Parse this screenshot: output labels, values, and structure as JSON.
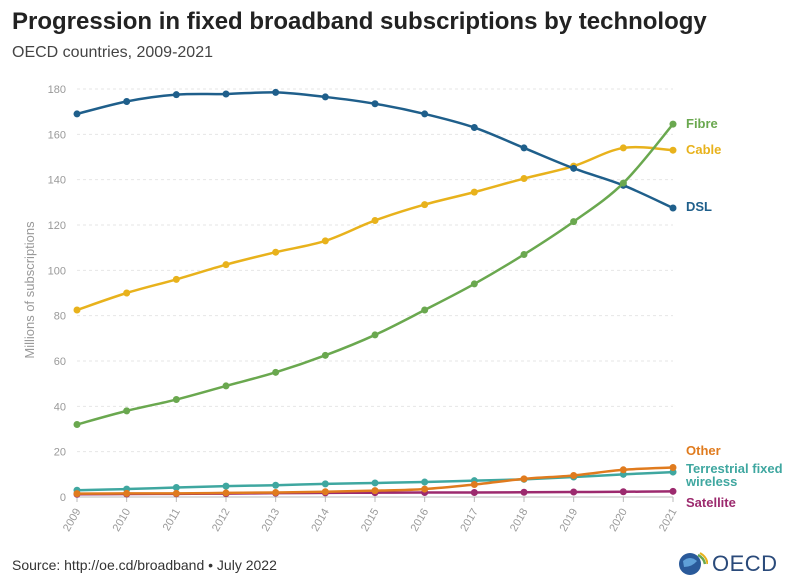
{
  "title": "Progression in fixed broadband subscriptions by technology",
  "subtitle": "OECD countries, 2009-2021",
  "source": "Source: http://oe.cd/broadband • July 2022",
  "logo": {
    "text": "OECD"
  },
  "chart_data": {
    "type": "line",
    "ylabel": "Millions of subscriptions",
    "ylim": [
      0,
      180
    ],
    "yticks": [
      0,
      20,
      40,
      60,
      80,
      100,
      120,
      140,
      160,
      180
    ],
    "x": [
      "2009",
      "2010",
      "2011",
      "2012",
      "2013",
      "2014",
      "2015",
      "2016",
      "2017",
      "2018",
      "2019",
      "2020",
      "2021"
    ],
    "grid": true,
    "series": [
      {
        "name": "DSL",
        "color": "#1f5f8b",
        "values": [
          169,
          174.5,
          177.5,
          177.8,
          178.5,
          176.5,
          173.5,
          169,
          163,
          154,
          145,
          137.5,
          127.5
        ]
      },
      {
        "name": "Cable",
        "color": "#e8b21c",
        "values": [
          82.5,
          90,
          96,
          102.5,
          108,
          113,
          122,
          129,
          134.5,
          140.5,
          146,
          154,
          153
        ]
      },
      {
        "name": "Fibre",
        "color": "#6aa84f",
        "values": [
          32,
          38,
          43,
          49,
          55,
          62.5,
          71.5,
          82.5,
          94,
          107,
          121.5,
          138.5,
          164.5
        ]
      },
      {
        "name": "Other",
        "color": "#e07b1e",
        "values": [
          1.5,
          1.6,
          1.6,
          1.8,
          2,
          2.3,
          2.8,
          3.5,
          5.5,
          8,
          9.5,
          12,
          13
        ]
      },
      {
        "name": "Terrestrial fixed wireless",
        "color": "#3fa7a0",
        "values": [
          3,
          3.5,
          4.2,
          4.8,
          5.2,
          5.8,
          6.2,
          6.6,
          7.2,
          7.8,
          8.8,
          10,
          11
        ]
      },
      {
        "name": "Satellite",
        "color": "#9c2a6e",
        "values": [
          1.2,
          1.3,
          1.4,
          1.5,
          1.7,
          1.8,
          1.9,
          2.0,
          2.0,
          2.1,
          2.2,
          2.3,
          2.5
        ]
      }
    ]
  }
}
